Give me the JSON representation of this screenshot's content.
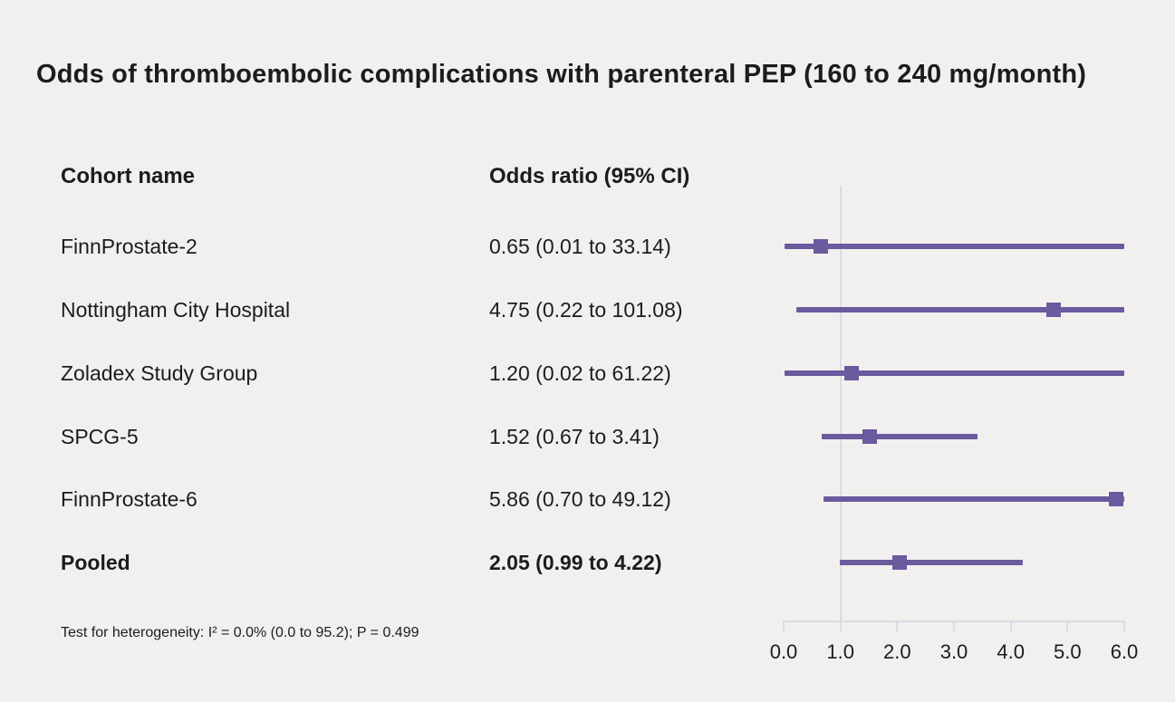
{
  "title": "Odds of thromboembolic complications with parenteral PEP (160 to 240 mg/month)",
  "columns": {
    "cohort": "Cohort name",
    "odds_ratio": "Odds ratio (95% CI)"
  },
  "footnote": "Test for heterogeneity: I² = 0.0% (0.0 to 95.2); P = 0.499",
  "colors": {
    "accent": "#6a5a9e",
    "axis": "#dcdae4",
    "background": "#f2f0ef",
    "text": "#1c1c1c"
  },
  "chart_data": {
    "type": "forest",
    "title": "Odds of thromboembolic complications with parenteral PEP (160 to 240 mg/month)",
    "xlabel": "",
    "ylabel": "",
    "xlim": [
      0,
      6
    ],
    "x_ticks": [
      "0.0",
      "1.0",
      "2.0",
      "3.0",
      "4.0",
      "5.0",
      "6.0"
    ],
    "reference_line": 1.0,
    "studies": [
      {
        "name": "FinnProstate-2",
        "label": "0.65 (0.01 to 33.14)",
        "or": 0.65,
        "low": 0.01,
        "high": 33.14,
        "pooled": false
      },
      {
        "name": "Nottingham City Hospital",
        "label": "4.75 (0.22 to 101.08)",
        "or": 4.75,
        "low": 0.22,
        "high": 101.08,
        "pooled": false
      },
      {
        "name": "Zoladex Study Group",
        "label": "1.20 (0.02 to 61.22)",
        "or": 1.2,
        "low": 0.02,
        "high": 61.22,
        "pooled": false
      },
      {
        "name": "SPCG-5",
        "label": "1.52 (0.67 to 3.41)",
        "or": 1.52,
        "low": 0.67,
        "high": 3.41,
        "pooled": false
      },
      {
        "name": "FinnProstate-6",
        "label": "5.86 (0.70 to 49.12)",
        "or": 5.86,
        "low": 0.7,
        "high": 49.12,
        "pooled": false
      },
      {
        "name": "Pooled",
        "label": "2.05 (0.99 to 4.22)",
        "or": 2.05,
        "low": 0.99,
        "high": 4.22,
        "pooled": true
      }
    ],
    "heterogeneity": "Test for heterogeneity: I² = 0.0% (0.0 to 95.2); P = 0.499"
  }
}
